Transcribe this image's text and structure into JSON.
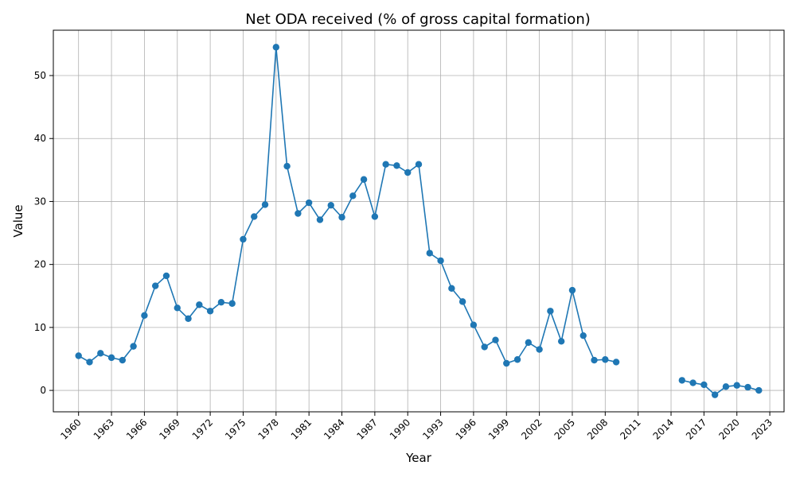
{
  "chart_data": {
    "type": "line",
    "title": "Net ODA received (% of gross capital formation)",
    "xlabel": "Year",
    "ylabel": "Value",
    "xlim": [
      1957.7,
      2024.3
    ],
    "ylim": [
      -3.4,
      57.2
    ],
    "xticks": [
      1960,
      1963,
      1966,
      1969,
      1972,
      1975,
      1978,
      1981,
      1984,
      1987,
      1990,
      1993,
      1996,
      1999,
      2002,
      2005,
      2008,
      2011,
      2014,
      2017,
      2020,
      2023
    ],
    "yticks": [
      0,
      10,
      20,
      30,
      40,
      50
    ],
    "grid": true,
    "color": "#1f77b4",
    "x": [
      1960,
      1961,
      1962,
      1963,
      1964,
      1965,
      1966,
      1967,
      1968,
      1969,
      1970,
      1971,
      1972,
      1973,
      1974,
      1975,
      1976,
      1977,
      1978,
      1979,
      1980,
      1981,
      1982,
      1983,
      1984,
      1985,
      1986,
      1987,
      1988,
      1989,
      1990,
      1991,
      1992,
      1993,
      1994,
      1995,
      1996,
      1997,
      1998,
      1999,
      2000,
      2001,
      2002,
      2003,
      2004,
      2005,
      2006,
      2007,
      2008,
      2009,
      2010,
      2011,
      2012,
      2013,
      2014,
      2015,
      2016,
      2017,
      2018,
      2019,
      2020,
      2021,
      2022
    ],
    "y": [
      5.5,
      4.5,
      5.9,
      5.2,
      4.8,
      7.0,
      11.9,
      16.6,
      18.2,
      13.1,
      11.4,
      13.6,
      12.6,
      14.0,
      13.8,
      24.0,
      27.6,
      29.5,
      54.5,
      35.6,
      28.1,
      29.8,
      27.1,
      29.4,
      27.5,
      30.9,
      33.5,
      27.6,
      35.9,
      35.7,
      34.6,
      35.9,
      21.8,
      20.6,
      16.2,
      14.1,
      10.4,
      6.9,
      8.0,
      4.3,
      4.9,
      7.6,
      6.5,
      12.6,
      7.8,
      15.9,
      8.7,
      4.8,
      4.9,
      4.5,
      null,
      null,
      null,
      null,
      null,
      1.6,
      1.2,
      0.9,
      -0.7,
      0.6,
      0.8,
      0.5,
      0.0
    ]
  }
}
